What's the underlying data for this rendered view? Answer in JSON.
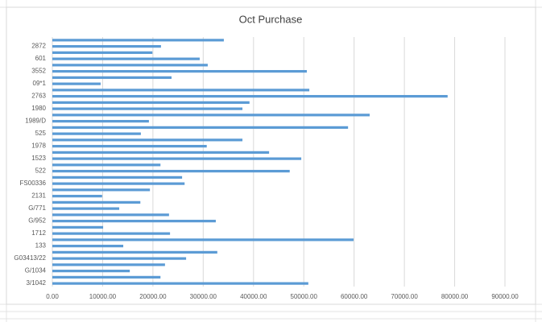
{
  "chart_data": {
    "type": "barh",
    "title": "Oct Purchase",
    "color": "#5b9bd5",
    "grid": true,
    "categories": [
      null,
      "2872",
      null,
      "601",
      null,
      "3552",
      null,
      "09*1",
      null,
      "2763",
      null,
      "1980",
      null,
      "1989/D",
      null,
      "525",
      null,
      "1978",
      null,
      "1523",
      null,
      "522",
      null,
      "FS00336",
      null,
      "2131",
      null,
      "G/771",
      null,
      "G/952",
      null,
      "1712",
      null,
      "133",
      null,
      "G03413/22",
      null,
      "G/1034",
      null,
      "3/1042"
    ],
    "values": [
      34100,
      21600,
      19900,
      29300,
      30900,
      50600,
      23700,
      9600,
      51100,
      78600,
      39200,
      37800,
      63100,
      19200,
      58800,
      17600,
      37800,
      30700,
      43100,
      49500,
      21500,
      47200,
      25800,
      26300,
      19400,
      9900,
      17500,
      13300,
      23200,
      32500,
      10100,
      23400,
      59900,
      14100,
      32800,
      26600,
      22400,
      15400,
      21500,
      50900
    ],
    "xlim": [
      0,
      90000
    ],
    "xticks": [
      {
        "value": 0,
        "label": "0.00"
      },
      {
        "value": 10000,
        "label": "10000.00"
      },
      {
        "value": 20000,
        "label": "20000.00"
      },
      {
        "value": 30000,
        "label": "30000.00"
      },
      {
        "value": 40000,
        "label": "40000.00"
      },
      {
        "value": 50000,
        "label": "50000.00"
      },
      {
        "value": 60000,
        "label": "60000.00"
      },
      {
        "value": 70000,
        "label": "70000.00"
      },
      {
        "value": 80000,
        "label": "80000.00"
      },
      {
        "value": 90000,
        "label": "90000.00"
      }
    ]
  }
}
